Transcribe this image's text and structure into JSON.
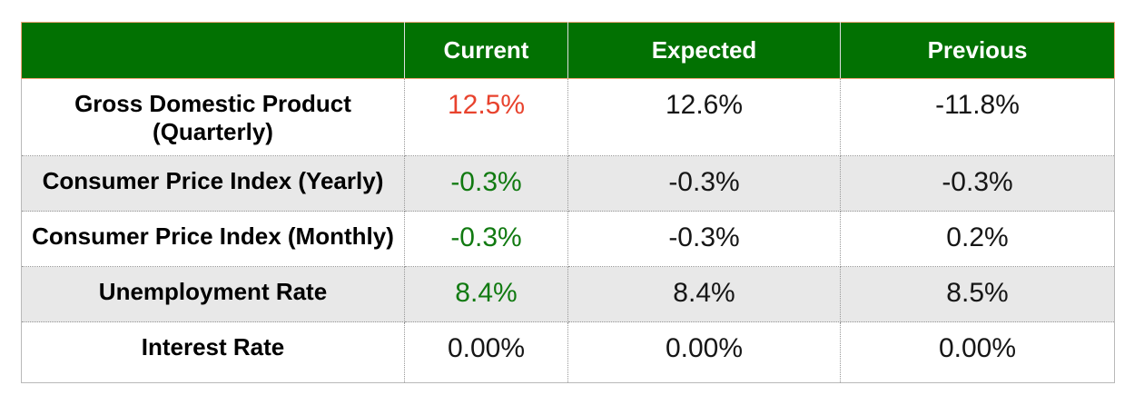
{
  "colors": {
    "header_bg": "#027102",
    "header_text": "#ffffff",
    "header_border": "#f1a478",
    "value_red": "#e8432e",
    "value_green": "#117a11",
    "zebra": "#e8e8e8"
  },
  "table": {
    "header": {
      "label_column": "",
      "columns": [
        "Current",
        "Expected",
        "Previous"
      ]
    },
    "rows": [
      {
        "label": "Gross Domestic Product\n(Quarterly)",
        "current": "12.5%",
        "current_color": "red",
        "expected": "12.6%",
        "previous": "-11.8%"
      },
      {
        "label": "Consumer Price Index (Yearly)",
        "current": "-0.3%",
        "current_color": "green",
        "expected": "-0.3%",
        "previous": "-0.3%"
      },
      {
        "label": "Consumer Price Index (Monthly)",
        "current": "-0.3%",
        "current_color": "green",
        "expected": "-0.3%",
        "previous": "0.2%"
      },
      {
        "label": "Unemployment Rate",
        "current": "8.4%",
        "current_color": "green",
        "expected": "8.4%",
        "previous": "8.5%"
      },
      {
        "label": "Interest Rate",
        "current": "0.00%",
        "current_color": "black",
        "expected": "0.00%",
        "previous": "0.00%"
      }
    ]
  }
}
